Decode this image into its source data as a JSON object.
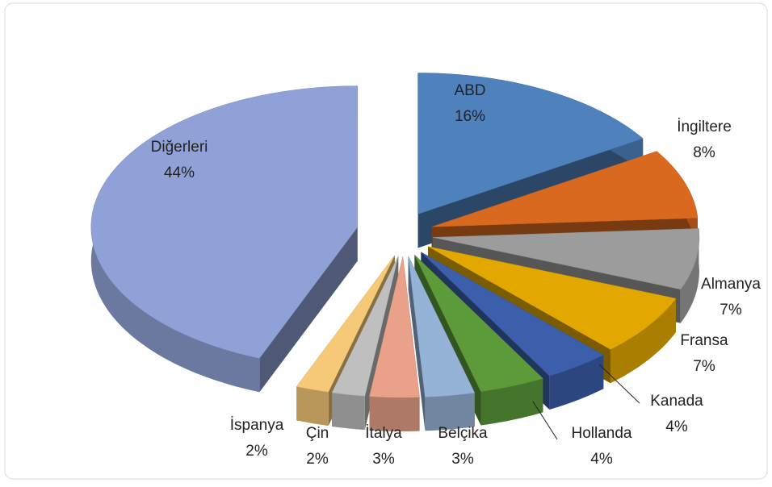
{
  "chart_data": {
    "type": "pie3d",
    "categories": [
      "ABD",
      "İngiltere",
      "Almanya",
      "Fransa",
      "Kanada",
      "Hollanda",
      "Belçika",
      "İtalya",
      "Çin",
      "İspanya",
      "Diğerleri"
    ],
    "values": [
      16,
      8,
      7,
      7,
      4,
      4,
      3,
      3,
      2,
      2,
      44
    ],
    "value_labels": [
      "16%",
      "8%",
      "7%",
      "7%",
      "4%",
      "4%",
      "3%",
      "3%",
      "2%",
      "2%",
      "44%"
    ],
    "colors": [
      "#4f81bd",
      "#d9691f",
      "#9c9c9c",
      "#e2a800",
      "#3b5fab",
      "#5c9a3a",
      "#95b3d7",
      "#e9a189",
      "#bfbfbf",
      "#f6c978",
      "#8fa1d6"
    ]
  }
}
